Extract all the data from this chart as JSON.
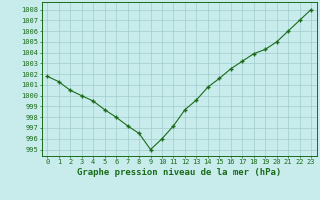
{
  "x": [
    0,
    1,
    2,
    3,
    4,
    5,
    6,
    7,
    8,
    9,
    10,
    11,
    12,
    13,
    14,
    15,
    16,
    17,
    18,
    19,
    20,
    21,
    22,
    23
  ],
  "y": [
    1001.8,
    1001.3,
    1000.5,
    1000.0,
    999.5,
    998.7,
    998.0,
    997.2,
    996.5,
    995.0,
    996.0,
    997.2,
    998.7,
    999.6,
    1000.8,
    1001.6,
    1002.5,
    1003.2,
    1003.9,
    1004.3,
    1005.0,
    1006.0,
    1007.0,
    1008.0
  ],
  "line_color": "#1a6b1a",
  "marker": "+",
  "marker_size": 3.5,
  "marker_lw": 1.0,
  "line_width": 0.8,
  "background_color": "#c8ecec",
  "grid_color": "#a0cccc",
  "ylabel_ticks": [
    995,
    996,
    997,
    998,
    999,
    1000,
    1001,
    1002,
    1003,
    1004,
    1005,
    1006,
    1007,
    1008
  ],
  "xlabel_label": "Graphe pression niveau de la mer (hPa)",
  "ylim": [
    994.4,
    1008.7
  ],
  "xlim": [
    -0.5,
    23.5
  ],
  "tick_label_color": "#1a6b1a",
  "axis_label_color": "#1a6b1a",
  "tick_fontsize": 5.0,
  "xlabel_fontsize": 6.5,
  "plot_bg": "#c8ecec"
}
